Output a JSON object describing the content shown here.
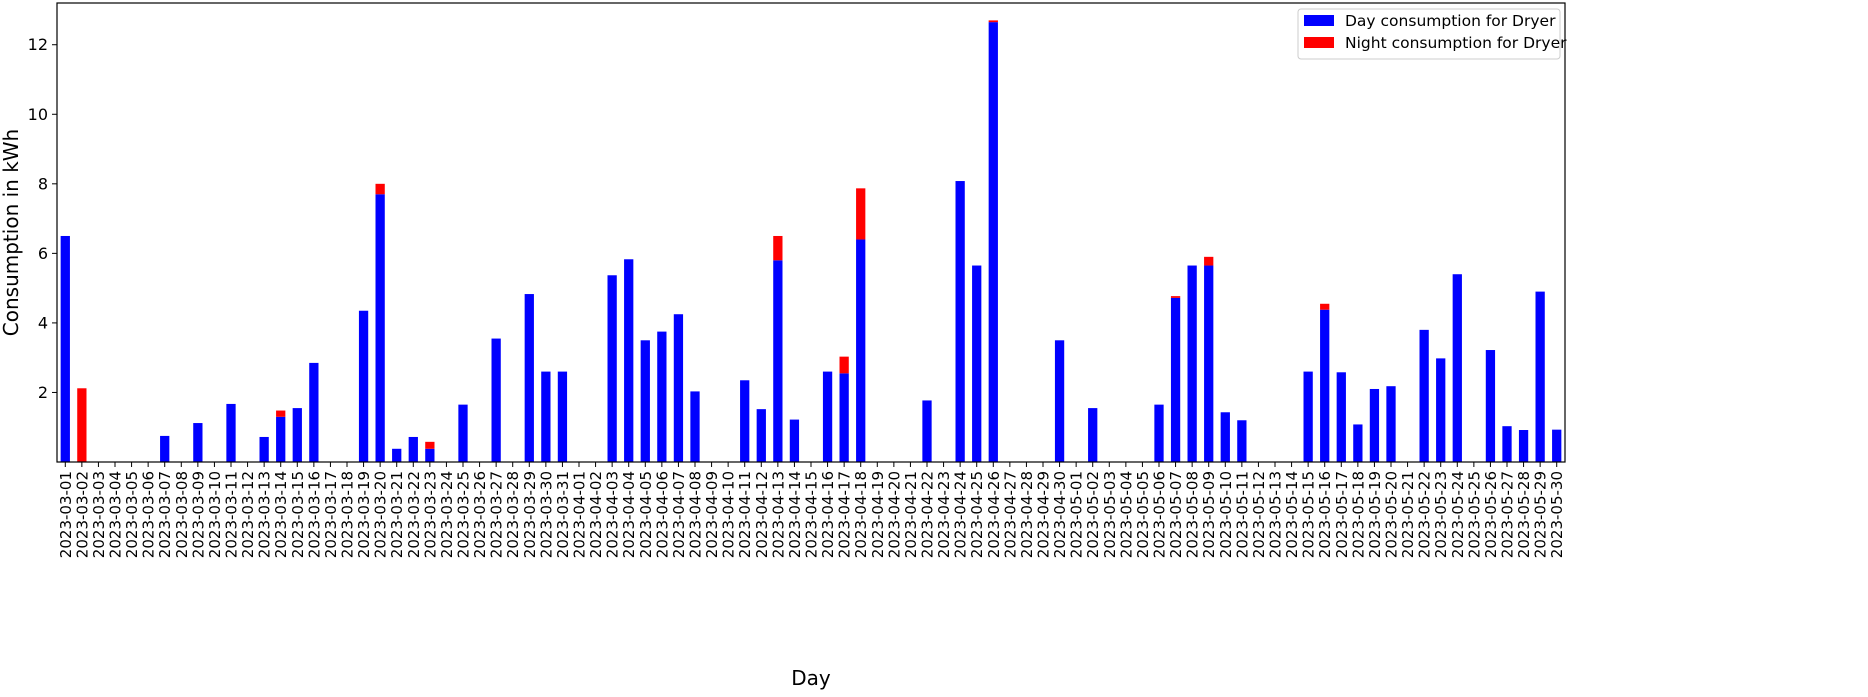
{
  "chart_data": {
    "type": "bar",
    "stacked": true,
    "title": "",
    "xlabel": "Day",
    "ylabel": "Consumption in kWh",
    "ylim": [
      0,
      13.2
    ],
    "yticks": [
      2,
      4,
      6,
      8,
      10,
      12
    ],
    "grid": false,
    "legend_position": "top-right",
    "categories": [
      "2023-03-01",
      "2023-03-02",
      "2023-03-03",
      "2023-03-04",
      "2023-03-05",
      "2023-03-06",
      "2023-03-07",
      "2023-03-08",
      "2023-03-09",
      "2023-03-10",
      "2023-03-11",
      "2023-03-12",
      "2023-03-13",
      "2023-03-14",
      "2023-03-15",
      "2023-03-16",
      "2023-03-17",
      "2023-03-18",
      "2023-03-19",
      "2023-03-20",
      "2023-03-21",
      "2023-03-22",
      "2023-03-23",
      "2023-03-24",
      "2023-03-25",
      "2023-03-26",
      "2023-03-27",
      "2023-03-28",
      "2023-03-29",
      "2023-03-30",
      "2023-03-31",
      "2023-04-01",
      "2023-04-02",
      "2023-04-03",
      "2023-04-04",
      "2023-04-05",
      "2023-04-06",
      "2023-04-07",
      "2023-04-08",
      "2023-04-09",
      "2023-04-10",
      "2023-04-11",
      "2023-04-12",
      "2023-04-13",
      "2023-04-14",
      "2023-04-15",
      "2023-04-16",
      "2023-04-17",
      "2023-04-18",
      "2023-04-19",
      "2023-04-20",
      "2023-04-21",
      "2023-04-22",
      "2023-04-23",
      "2023-04-24",
      "2023-04-25",
      "2023-04-26",
      "2023-04-27",
      "2023-04-28",
      "2023-04-29",
      "2023-04-30",
      "2023-05-01",
      "2023-05-02",
      "2023-05-03",
      "2023-05-04",
      "2023-05-05",
      "2023-05-06",
      "2023-05-07",
      "2023-05-08",
      "2023-05-09",
      "2023-05-10",
      "2023-05-11",
      "2023-05-12",
      "2023-05-13",
      "2023-05-14",
      "2023-05-15",
      "2023-05-16",
      "2023-05-17",
      "2023-05-18",
      "2023-05-19",
      "2023-05-20",
      "2023-05-21",
      "2023-05-22",
      "2023-05-23",
      "2023-05-24",
      "2023-05-25",
      "2023-05-26",
      "2023-05-27",
      "2023-05-28",
      "2023-05-29",
      "2023-05-30"
    ],
    "series": [
      {
        "name": "Day consumption for Dryer",
        "color": "#0000ff",
        "values": [
          6.5,
          0,
          0,
          0,
          0,
          0,
          0.75,
          0,
          1.12,
          0,
          1.67,
          0,
          0.72,
          1.3,
          1.55,
          2.85,
          0,
          0,
          4.35,
          7.7,
          0.38,
          0.72,
          0.38,
          0,
          1.65,
          0,
          3.55,
          0,
          4.83,
          2.6,
          2.6,
          0,
          0,
          5.37,
          5.83,
          3.5,
          3.75,
          4.25,
          2.03,
          0,
          0,
          2.35,
          1.52,
          5.8,
          1.22,
          0,
          2.6,
          2.55,
          6.4,
          0,
          0,
          0,
          1.77,
          0,
          8.08,
          5.65,
          12.65,
          0,
          0,
          0,
          3.5,
          0,
          1.55,
          0,
          0,
          0,
          1.65,
          4.72,
          5.65,
          5.65,
          1.43,
          1.2,
          0,
          0,
          0,
          2.6,
          4.38,
          2.58,
          1.08,
          2.1,
          2.18,
          0,
          3.8,
          2.98,
          5.4,
          0,
          3.22,
          1.03,
          0.92,
          4.9,
          0.93
        ]
      },
      {
        "name": "Night consumption for Dryer",
        "color": "#ff0000",
        "values": [
          0,
          2.12,
          0,
          0,
          0,
          0,
          0,
          0,
          0,
          0,
          0,
          0,
          0,
          0.18,
          0,
          0,
          0,
          0,
          0,
          0.3,
          0,
          0,
          0.2,
          0,
          0,
          0,
          0,
          0,
          0,
          0,
          0,
          0,
          0,
          0,
          0,
          0,
          0,
          0,
          0,
          0,
          0,
          0,
          0,
          0.7,
          0,
          0,
          0,
          0.48,
          1.47,
          0,
          0,
          0,
          0,
          0,
          0,
          0,
          0.05,
          0,
          0,
          0,
          0,
          0,
          0,
          0,
          0,
          0,
          0,
          0.05,
          0,
          0.25,
          0,
          0,
          0,
          0,
          0,
          0,
          0.17,
          0,
          0,
          0,
          0,
          0,
          0,
          0,
          0,
          0,
          0,
          0,
          0,
          0,
          0
        ]
      }
    ]
  }
}
